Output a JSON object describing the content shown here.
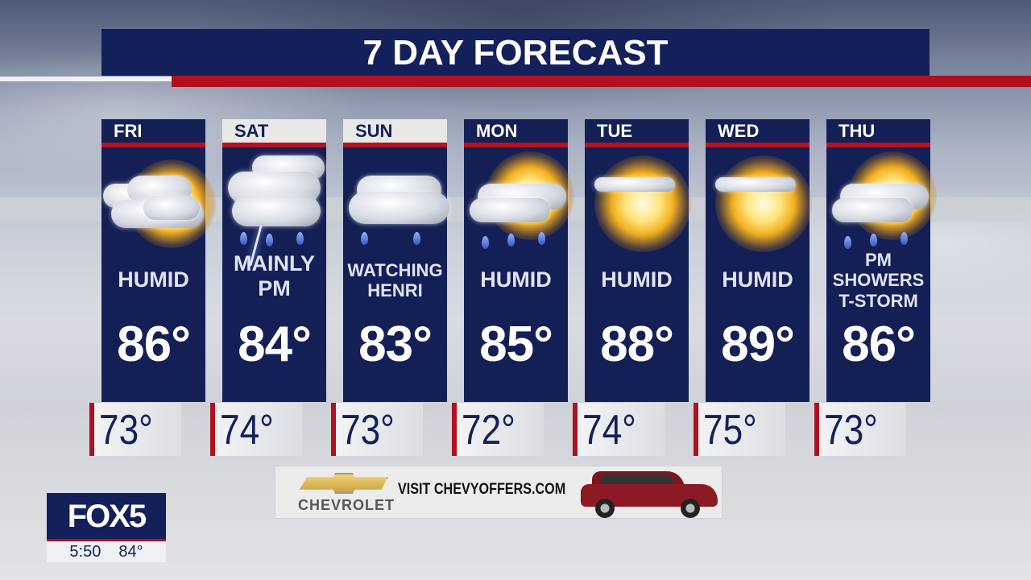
{
  "title": "7 DAY FORECAST",
  "days": [
    {
      "day": "FRI",
      "weekend": false,
      "icon": "partly-cloudy-icon",
      "condition": [
        "HUMID"
      ],
      "high": "86°",
      "low": "73°"
    },
    {
      "day": "SAT",
      "weekend": true,
      "icon": "thunderstorm-icon",
      "condition": [
        "MAINLY",
        "PM"
      ],
      "high": "84°",
      "low": "74°"
    },
    {
      "day": "SUN",
      "weekend": true,
      "icon": "rain-cloud-icon",
      "condition": [
        "WATCHING",
        "HENRI"
      ],
      "high": "83°",
      "low": "73°"
    },
    {
      "day": "MON",
      "weekend": false,
      "icon": "sun-cloud-rain-icon",
      "condition": [
        "HUMID"
      ],
      "high": "85°",
      "low": "72°"
    },
    {
      "day": "TUE",
      "weekend": false,
      "icon": "mostly-sunny-icon",
      "condition": [
        "HUMID"
      ],
      "high": "88°",
      "low": "74°"
    },
    {
      "day": "WED",
      "weekend": false,
      "icon": "mostly-sunny-icon",
      "condition": [
        "HUMID"
      ],
      "high": "89°",
      "low": "75°"
    },
    {
      "day": "THU",
      "weekend": false,
      "icon": "sun-cloud-rain-icon",
      "condition": [
        "PM",
        "SHOWERS",
        "T-STORM"
      ],
      "high": "86°",
      "low": "73°"
    }
  ],
  "logo": {
    "brand": "FOX5",
    "time": "5:50",
    "current_temp": "84°"
  },
  "ad": {
    "brand": "CHEVROLET",
    "text": "VISIT CHEVYOFFERS.COM"
  },
  "colors": {
    "navy": "#13205a",
    "red": "#b0101f"
  }
}
